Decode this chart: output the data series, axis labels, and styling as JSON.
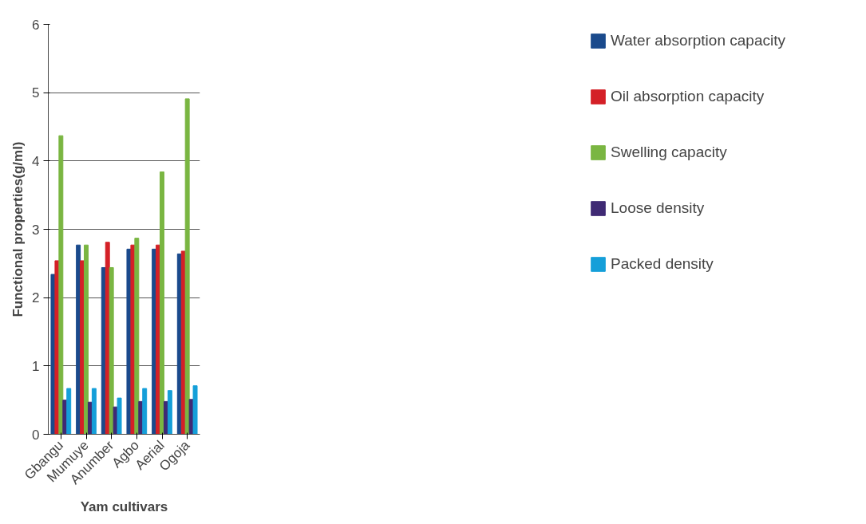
{
  "chart_data": {
    "type": "bar",
    "xlabel": "Yam cultivars",
    "ylabel": "Functional properties(g/ml)",
    "categories": [
      "Gbangu",
      "Mumuye",
      "Anumber",
      "Agbo",
      "Aerial",
      "Ogoja"
    ],
    "series": [
      {
        "name": "Water absorption capacity",
        "color": "#1a4a8c",
        "values": [
          2.34,
          2.77,
          2.44,
          2.71,
          2.71,
          2.64
        ]
      },
      {
        "name": "Oil absorption capacity",
        "color": "#d42027",
        "values": [
          2.54,
          2.54,
          2.81,
          2.77,
          2.77,
          2.68
        ]
      },
      {
        "name": "Swelling capacity",
        "color": "#7ab642",
        "values": [
          4.37,
          2.77,
          2.44,
          2.87,
          3.84,
          4.91
        ]
      },
      {
        "name": "Loose density",
        "color": "#3f2a74",
        "values": [
          0.5,
          0.47,
          0.4,
          0.48,
          0.48,
          0.51
        ]
      },
      {
        "name": "Packed density",
        "color": "#159fd9",
        "values": [
          0.67,
          0.67,
          0.53,
          0.67,
          0.64,
          0.71
        ]
      }
    ],
    "ylim": [
      0,
      6
    ],
    "yticks": [
      0,
      1,
      2,
      3,
      4,
      5,
      6
    ],
    "grid": "y",
    "legend": "right"
  }
}
